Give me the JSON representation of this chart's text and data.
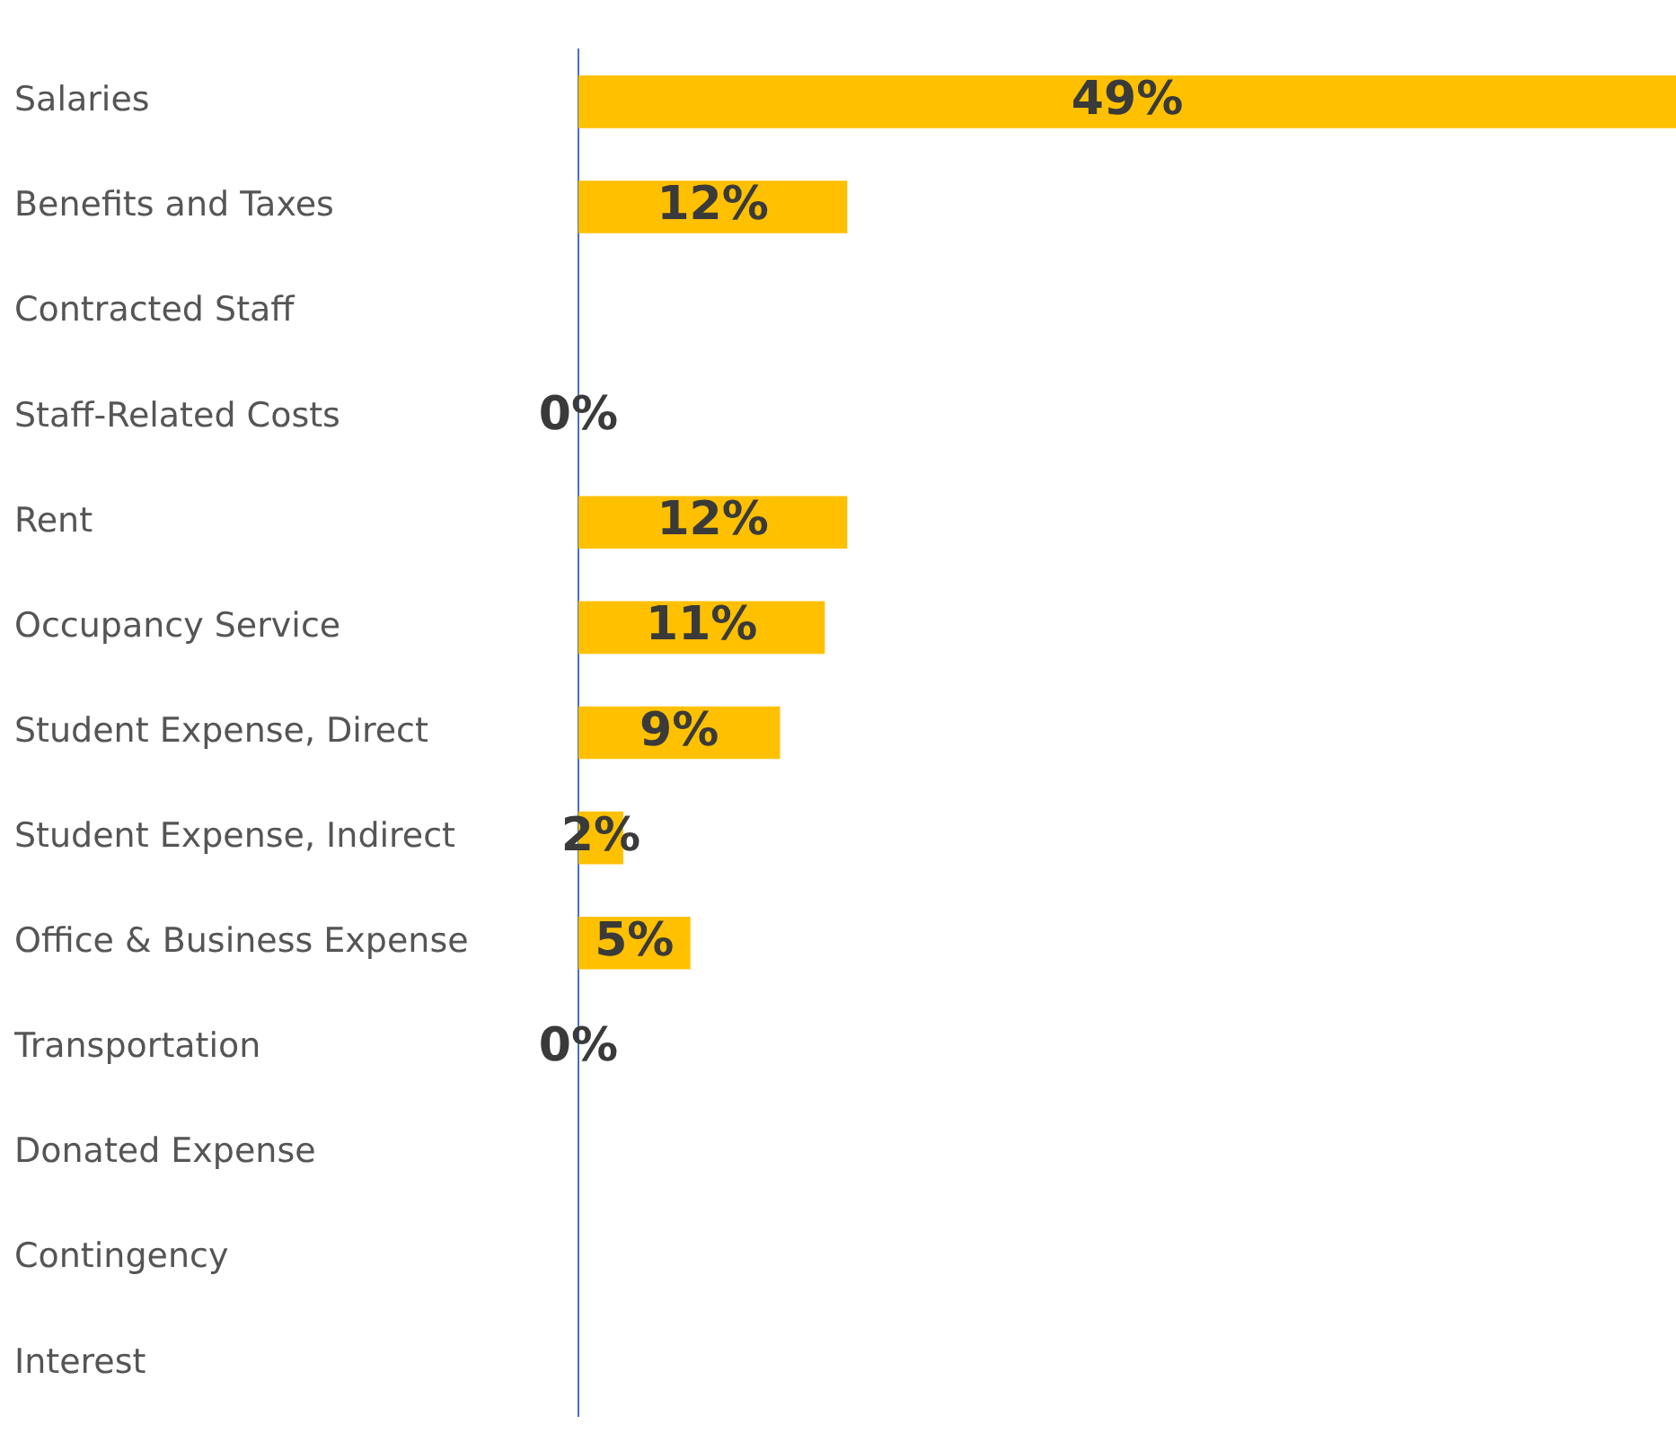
{
  "chart_data": {
    "type": "bar",
    "orientation": "horizontal",
    "categories": [
      "Salaries",
      "Benefits and Taxes",
      "Contracted Staff",
      "Staff-Related Costs",
      "Rent",
      "Occupancy Service",
      "Student Expense, Direct",
      "Student Expense, Indirect",
      "Office & Business Expense",
      "Transportation",
      "Donated Expense",
      "Contingency",
      "Interest"
    ],
    "values": [
      49,
      12,
      null,
      0,
      12,
      11,
      9,
      2,
      5,
      0,
      null,
      null,
      null
    ],
    "value_labels": [
      "49%",
      "12%",
      null,
      "0%",
      "12%",
      "11%",
      "9%",
      "2%",
      "5%",
      "0%",
      null,
      null,
      null
    ],
    "color": "#ffc000",
    "legend": false,
    "grid": false
  }
}
